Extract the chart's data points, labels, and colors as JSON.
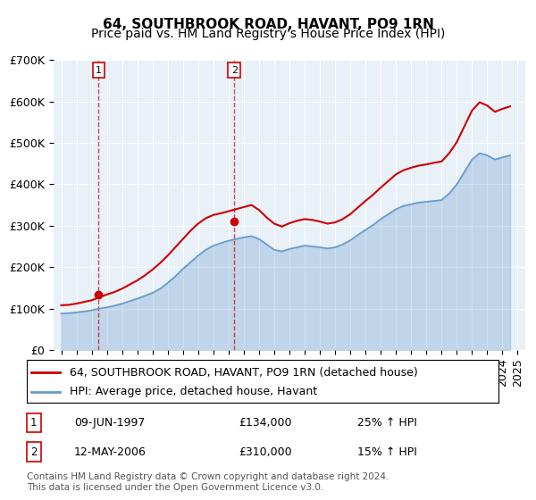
{
  "title": "64, SOUTHBROOK ROAD, HAVANT, PO9 1RN",
  "subtitle": "Price paid vs. HM Land Registry's House Price Index (HPI)",
  "xlabel": "",
  "ylabel": "",
  "ylim": [
    0,
    700000
  ],
  "yticks": [
    0,
    100000,
    200000,
    300000,
    400000,
    500000,
    600000,
    700000
  ],
  "ytick_labels": [
    "£0",
    "£100K",
    "£200K",
    "£300K",
    "£400K",
    "£500K",
    "£600K",
    "£700K"
  ],
  "background_color": "#ffffff",
  "plot_bg_color": "#e8f0f8",
  "grid_color": "#ffffff",
  "red_line_color": "#cc0000",
  "blue_line_color": "#6699cc",
  "marker_color": "#cc0000",
  "dashed_line_color": "#cc0000",
  "legend_label_red": "64, SOUTHBROOK ROAD, HAVANT, PO9 1RN (detached house)",
  "legend_label_blue": "HPI: Average price, detached house, Havant",
  "sale1_date": "1997-06-09",
  "sale1_price": 134000,
  "sale1_label": "1",
  "sale1_pct": "25% ↑ HPI",
  "sale2_date": "2006-05-12",
  "sale2_price": 310000,
  "sale2_label": "2",
  "sale2_pct": "15% ↑ HPI",
  "footer": "Contains HM Land Registry data © Crown copyright and database right 2024.\nThis data is licensed under the Open Government Licence v3.0.",
  "title_fontsize": 11,
  "subtitle_fontsize": 10,
  "tick_fontsize": 9,
  "legend_fontsize": 9,
  "footer_fontsize": 7.5
}
